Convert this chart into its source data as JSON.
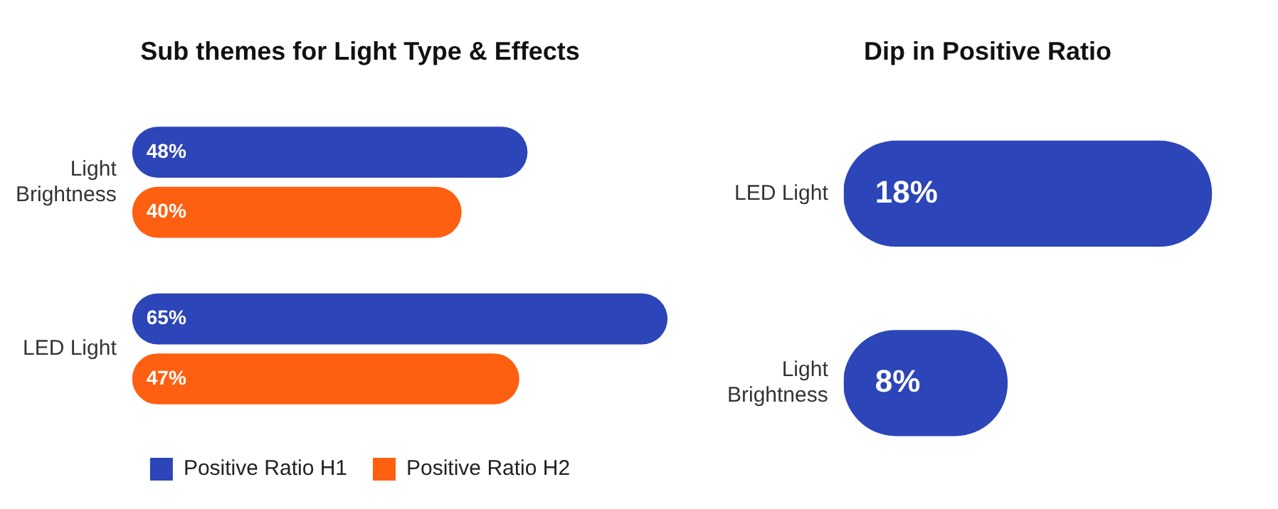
{
  "chart_data": [
    {
      "type": "bar",
      "orientation": "horizontal",
      "title": "Sub themes for Light Type & Effects",
      "categories": [
        "Light Brightness",
        "LED Light"
      ],
      "tick_labels": "y",
      "legend": "bottom",
      "series": [
        {
          "name": "Positive Ratio H1",
          "color": "#2c45b8",
          "values": [
            48,
            65
          ],
          "value_labels": [
            "48%",
            "65%"
          ]
        },
        {
          "name": "Positive Ratio H2",
          "color": "#ff5f10",
          "values": [
            40,
            47
          ],
          "value_labels": [
            "40%",
            "47%"
          ]
        }
      ]
    },
    {
      "type": "bar",
      "orientation": "horizontal",
      "title": "Dip in Positive Ratio",
      "categories": [
        "LED Light",
        "Light Brightness"
      ],
      "tick_labels": "y",
      "series": [
        {
          "color": "#2c45b8",
          "values": [
            18,
            8
          ],
          "value_labels": [
            "18%",
            "8%"
          ]
        }
      ]
    }
  ]
}
